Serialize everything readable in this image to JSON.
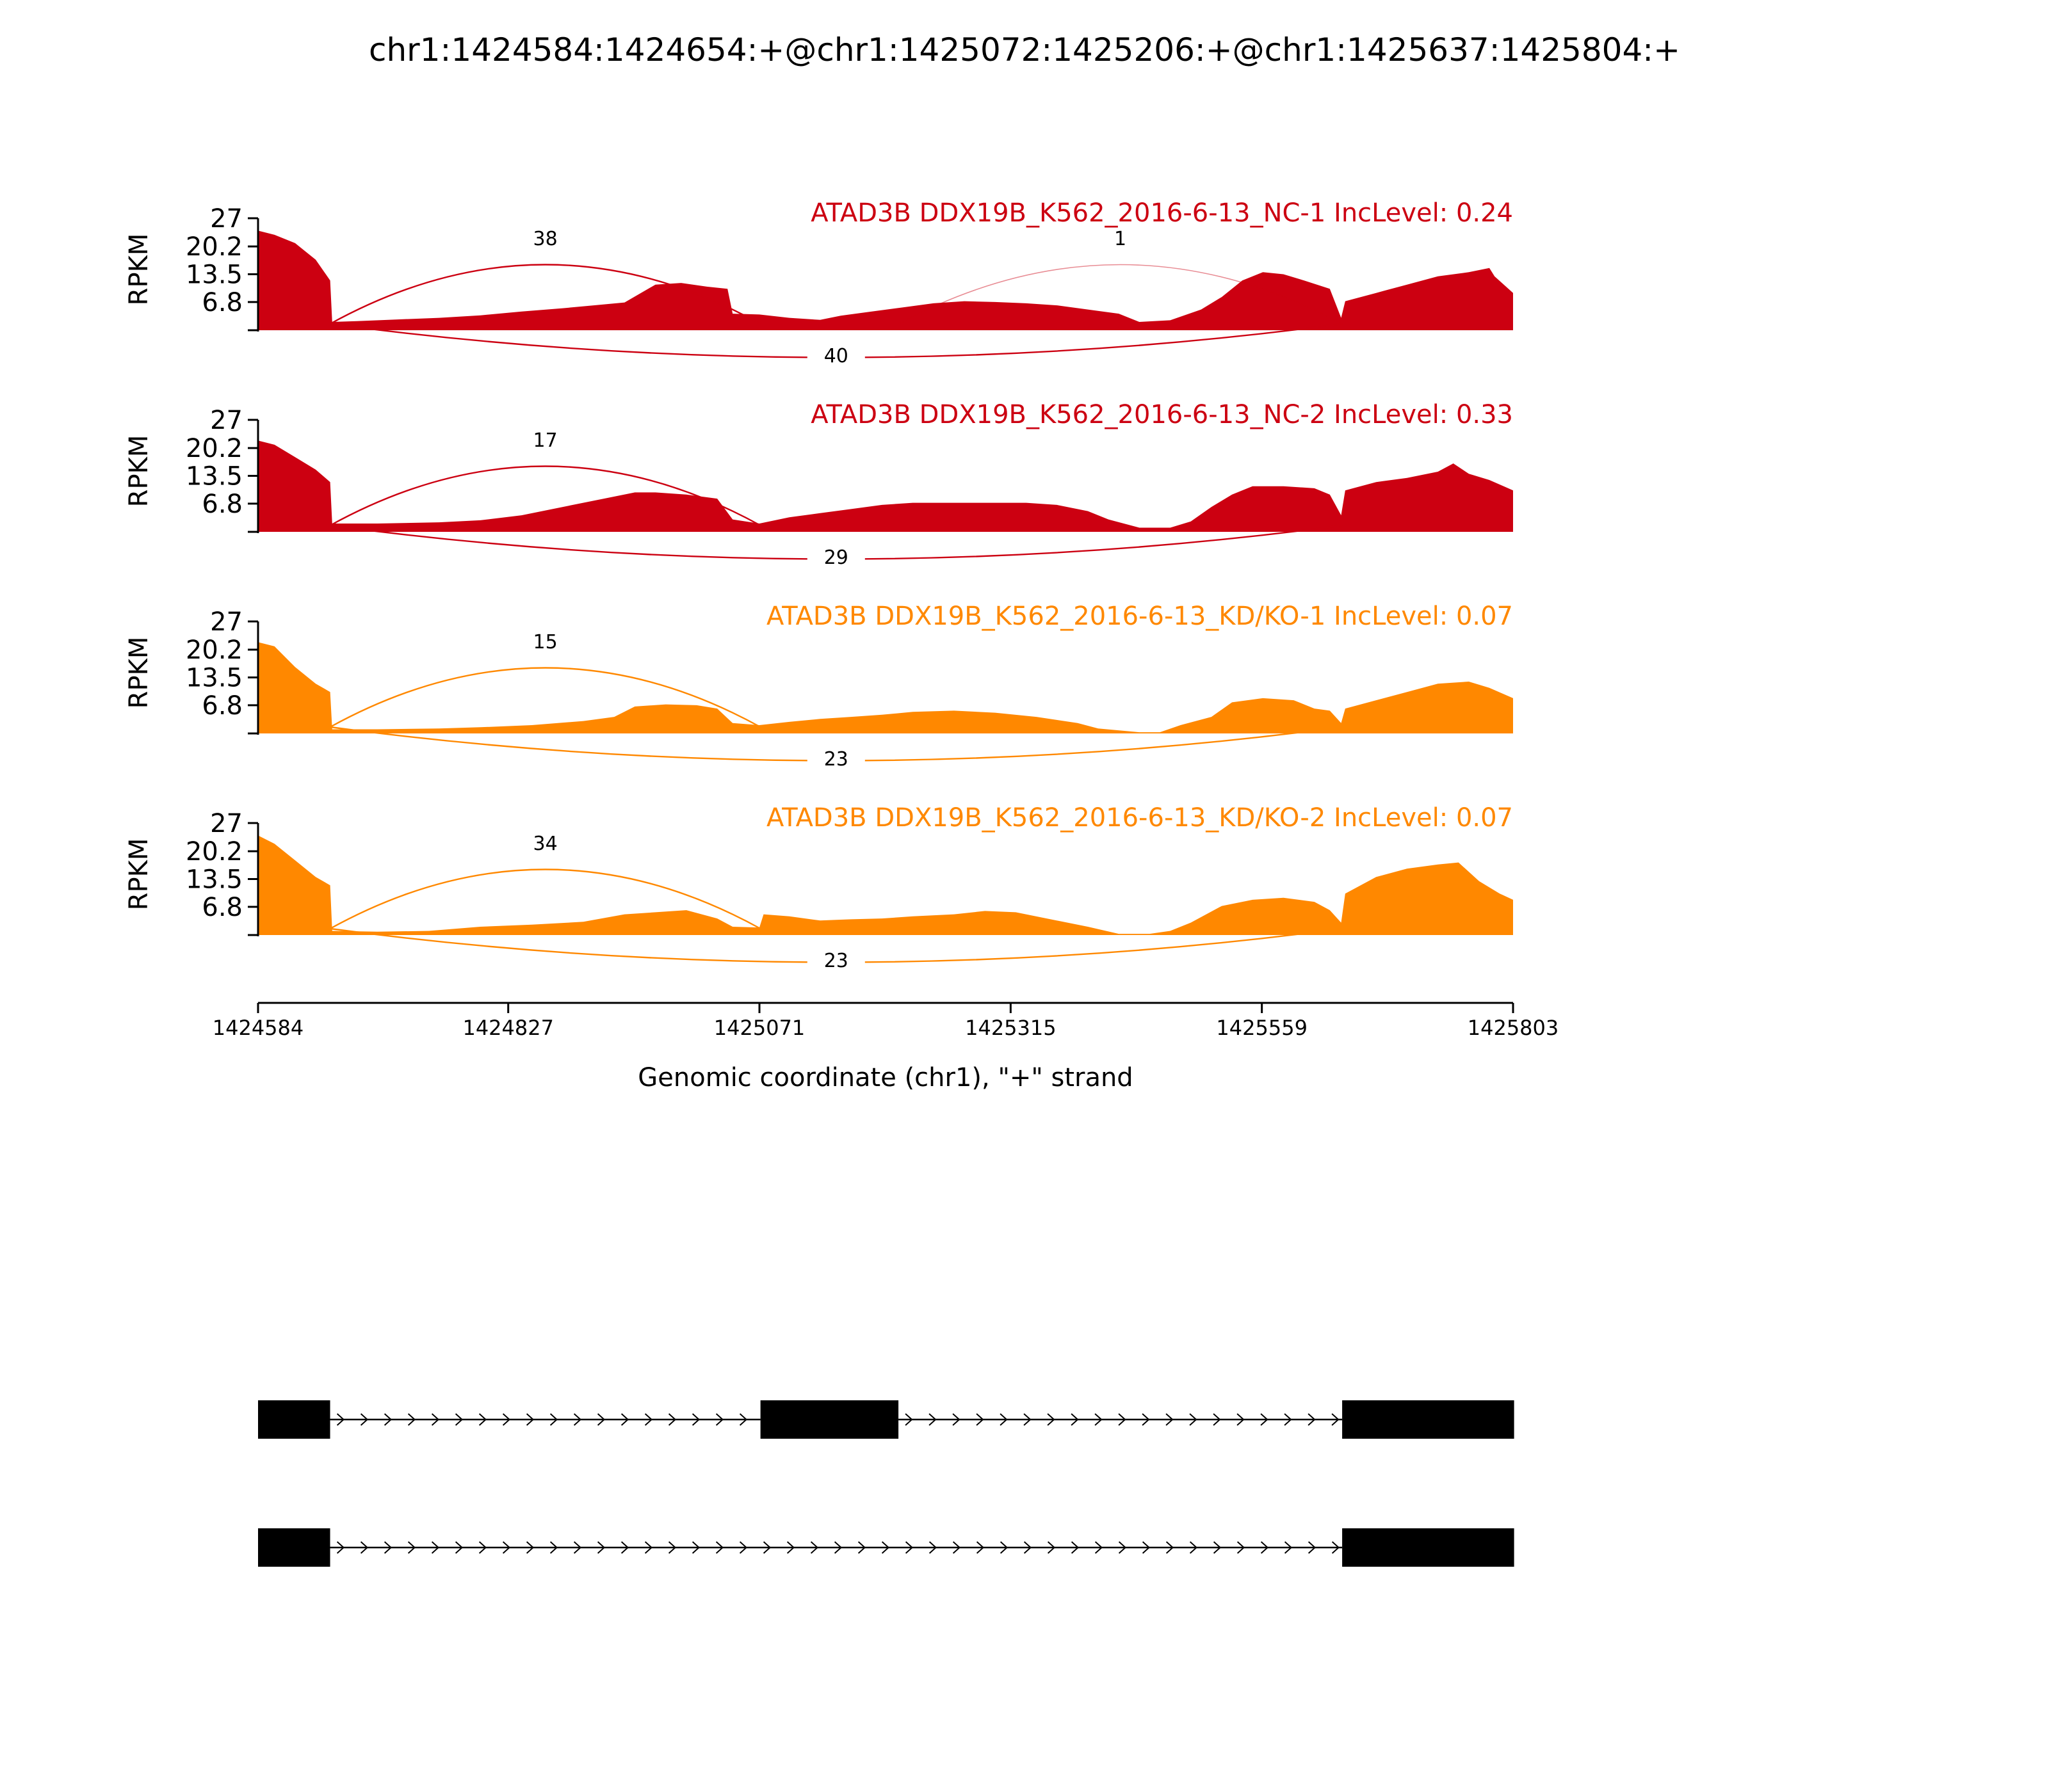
{
  "chart_data": {
    "type": "area",
    "title": "chr1:1424584:1424654:+@chr1:1425072:1425206:+@chr1:1425637:1425804:+",
    "xlabel": "Genomic coordinate (chr1), \"+\" strand",
    "ylabel": "RPKM",
    "xlim": [
      1424584,
      1425803
    ],
    "ylim": [
      0,
      27
    ],
    "x_ticks": [
      1424584,
      1424827,
      1425071,
      1425315,
      1425559,
      1425803
    ],
    "y_ticks": [
      6.8,
      13.5,
      20.2,
      27
    ],
    "exons": [
      {
        "start": 1424584,
        "end": 1424654
      },
      {
        "start": 1425072,
        "end": 1425206
      },
      {
        "start": 1425637,
        "end": 1425804
      }
    ],
    "isoforms": [
      {
        "exons": [
          [
            1424584,
            1424654
          ],
          [
            1425072,
            1425206
          ],
          [
            1425637,
            1425804
          ]
        ]
      },
      {
        "exons": [
          [
            1424584,
            1424654
          ],
          [
            1425637,
            1425804
          ]
        ]
      }
    ],
    "series": [
      {
        "name": "ATAD3B DDX19B_K562_2016-6-13_NC-1 IncLevel: 0.24",
        "color": "#cc0011",
        "coverage": [
          [
            1424584,
            24
          ],
          [
            1424600,
            23
          ],
          [
            1424620,
            21
          ],
          [
            1424640,
            17
          ],
          [
            1424654,
            12
          ],
          [
            1424656,
            2
          ],
          [
            1424680,
            2.2
          ],
          [
            1424720,
            2.6
          ],
          [
            1424760,
            3
          ],
          [
            1424800,
            3.6
          ],
          [
            1424840,
            4.5
          ],
          [
            1424880,
            5.3
          ],
          [
            1424910,
            6
          ],
          [
            1424940,
            6.7
          ],
          [
            1424970,
            11
          ],
          [
            1424995,
            11.4
          ],
          [
            1425020,
            10.5
          ],
          [
            1425040,
            10
          ],
          [
            1425045,
            4
          ],
          [
            1425071,
            3.8
          ],
          [
            1425100,
            3
          ],
          [
            1425130,
            2.5
          ],
          [
            1425150,
            3.5
          ],
          [
            1425180,
            4.5
          ],
          [
            1425210,
            5.5
          ],
          [
            1425240,
            6.5
          ],
          [
            1425270,
            7
          ],
          [
            1425300,
            6.8
          ],
          [
            1425330,
            6.5
          ],
          [
            1425360,
            6
          ],
          [
            1425390,
            5
          ],
          [
            1425420,
            4
          ],
          [
            1425440,
            2
          ],
          [
            1425470,
            2.4
          ],
          [
            1425500,
            5
          ],
          [
            1425520,
            8
          ],
          [
            1425540,
            12
          ],
          [
            1425560,
            14
          ],
          [
            1425580,
            13.5
          ],
          [
            1425600,
            12
          ],
          [
            1425625,
            10
          ],
          [
            1425636,
            3
          ],
          [
            1425640,
            7
          ],
          [
            1425670,
            9
          ],
          [
            1425700,
            11
          ],
          [
            1425730,
            13
          ],
          [
            1425760,
            14
          ],
          [
            1425780,
            15
          ],
          [
            1425785,
            13
          ],
          [
            1425803,
            9
          ]
        ],
        "junctions": [
          {
            "start": 1424654,
            "end": 1425072,
            "count": 38,
            "position": "above"
          },
          {
            "start": 1425206,
            "end": 1425637,
            "count": 1,
            "position": "above"
          },
          {
            "start": 1424654,
            "end": 1425637,
            "count": 40,
            "position": "below"
          }
        ]
      },
      {
        "name": "ATAD3B DDX19B_K562_2016-6-13_NC-2 IncLevel: 0.33",
        "color": "#cc0011",
        "coverage": [
          [
            1424584,
            22
          ],
          [
            1424600,
            21
          ],
          [
            1424620,
            18
          ],
          [
            1424640,
            15
          ],
          [
            1424654,
            12
          ],
          [
            1424656,
            2
          ],
          [
            1424700,
            2
          ],
          [
            1424760,
            2.3
          ],
          [
            1424800,
            2.8
          ],
          [
            1424840,
            4
          ],
          [
            1424880,
            6
          ],
          [
            1424920,
            8
          ],
          [
            1424950,
            9.5
          ],
          [
            1424970,
            9.5
          ],
          [
            1425000,
            9
          ],
          [
            1425030,
            8
          ],
          [
            1425045,
            3
          ],
          [
            1425071,
            2
          ],
          [
            1425100,
            3.5
          ],
          [
            1425130,
            4.5
          ],
          [
            1425160,
            5.5
          ],
          [
            1425190,
            6.5
          ],
          [
            1425220,
            7
          ],
          [
            1425260,
            7
          ],
          [
            1425300,
            7
          ],
          [
            1425330,
            7
          ],
          [
            1425360,
            6.5
          ],
          [
            1425390,
            5
          ],
          [
            1425410,
            3
          ],
          [
            1425440,
            1
          ],
          [
            1425470,
            1
          ],
          [
            1425490,
            2.5
          ],
          [
            1425510,
            6
          ],
          [
            1425530,
            9
          ],
          [
            1425550,
            11
          ],
          [
            1425580,
            11
          ],
          [
            1425610,
            10.5
          ],
          [
            1425625,
            9
          ],
          [
            1425636,
            4
          ],
          [
            1425640,
            10
          ],
          [
            1425670,
            12
          ],
          [
            1425700,
            13
          ],
          [
            1425730,
            14.5
          ],
          [
            1425745,
            16.5
          ],
          [
            1425760,
            14
          ],
          [
            1425780,
            12.5
          ],
          [
            1425803,
            10
          ]
        ],
        "junctions": [
          {
            "start": 1424654,
            "end": 1425072,
            "count": 17,
            "position": "above"
          },
          {
            "start": 1424654,
            "end": 1425637,
            "count": 29,
            "position": "below"
          }
        ]
      },
      {
        "name": "ATAD3B DDX19B_K562_2016-6-13_KD/KO-1 IncLevel: 0.07",
        "color": "#ff8800",
        "coverage": [
          [
            1424584,
            22
          ],
          [
            1424600,
            21
          ],
          [
            1424620,
            16
          ],
          [
            1424640,
            12
          ],
          [
            1424654,
            10
          ],
          [
            1424656,
            1
          ],
          [
            1424700,
            1
          ],
          [
            1424760,
            1.2
          ],
          [
            1424800,
            1.5
          ],
          [
            1424850,
            2
          ],
          [
            1424900,
            3
          ],
          [
            1424930,
            4
          ],
          [
            1424950,
            6.5
          ],
          [
            1424980,
            7
          ],
          [
            1425010,
            6.8
          ],
          [
            1425030,
            6
          ],
          [
            1425045,
            2.5
          ],
          [
            1425071,
            2
          ],
          [
            1425100,
            2.8
          ],
          [
            1425130,
            3.5
          ],
          [
            1425160,
            4
          ],
          [
            1425190,
            4.5
          ],
          [
            1425220,
            5.2
          ],
          [
            1425260,
            5.5
          ],
          [
            1425300,
            5
          ],
          [
            1425340,
            4
          ],
          [
            1425380,
            2.5
          ],
          [
            1425400,
            1.2
          ],
          [
            1425440,
            0.3
          ],
          [
            1425460,
            0.3
          ],
          [
            1425480,
            2
          ],
          [
            1425510,
            4
          ],
          [
            1425530,
            7.5
          ],
          [
            1425560,
            8.5
          ],
          [
            1425590,
            8
          ],
          [
            1425610,
            6
          ],
          [
            1425625,
            5.5
          ],
          [
            1425636,
            2.5
          ],
          [
            1425640,
            6
          ],
          [
            1425670,
            8
          ],
          [
            1425700,
            10
          ],
          [
            1425730,
            12
          ],
          [
            1425760,
            12.5
          ],
          [
            1425780,
            11
          ],
          [
            1425803,
            8.5
          ]
        ],
        "junctions": [
          {
            "start": 1424654,
            "end": 1425072,
            "count": 15,
            "position": "above"
          },
          {
            "start": 1424654,
            "end": 1425637,
            "count": 23,
            "position": "below"
          }
        ]
      },
      {
        "name": "ATAD3B DDX19B_K562_2016-6-13_KD/KO-2 IncLevel: 0.07",
        "color": "#ff8800",
        "coverage": [
          [
            1424584,
            24
          ],
          [
            1424600,
            22
          ],
          [
            1424620,
            18
          ],
          [
            1424640,
            14
          ],
          [
            1424654,
            12
          ],
          [
            1424656,
            1
          ],
          [
            1424700,
            0.8
          ],
          [
            1424750,
            1
          ],
          [
            1424800,
            2
          ],
          [
            1424850,
            2.5
          ],
          [
            1424900,
            3.2
          ],
          [
            1424940,
            5
          ],
          [
            1424970,
            5.5
          ],
          [
            1425000,
            6
          ],
          [
            1425030,
            4
          ],
          [
            1425045,
            2
          ],
          [
            1425071,
            1.8
          ],
          [
            1425075,
            5
          ],
          [
            1425100,
            4.5
          ],
          [
            1425130,
            3.5
          ],
          [
            1425160,
            3.8
          ],
          [
            1425190,
            4
          ],
          [
            1425220,
            4.5
          ],
          [
            1425260,
            5
          ],
          [
            1425290,
            5.8
          ],
          [
            1425320,
            5.5
          ],
          [
            1425350,
            4
          ],
          [
            1425390,
            2
          ],
          [
            1425420,
            0.3
          ],
          [
            1425450,
            0.3
          ],
          [
            1425470,
            1
          ],
          [
            1425490,
            3
          ],
          [
            1425520,
            7
          ],
          [
            1425550,
            8.5
          ],
          [
            1425580,
            9
          ],
          [
            1425610,
            8
          ],
          [
            1425625,
            6
          ],
          [
            1425636,
            3
          ],
          [
            1425640,
            10
          ],
          [
            1425670,
            14
          ],
          [
            1425700,
            16
          ],
          [
            1425730,
            17
          ],
          [
            1425750,
            17.5
          ],
          [
            1425770,
            13
          ],
          [
            1425790,
            10
          ],
          [
            1425803,
            8.5
          ]
        ],
        "junctions": [
          {
            "start": 1424654,
            "end": 1425072,
            "count": 34,
            "position": "above"
          },
          {
            "start": 1424654,
            "end": 1425637,
            "count": 23,
            "position": "below"
          }
        ]
      }
    ]
  }
}
